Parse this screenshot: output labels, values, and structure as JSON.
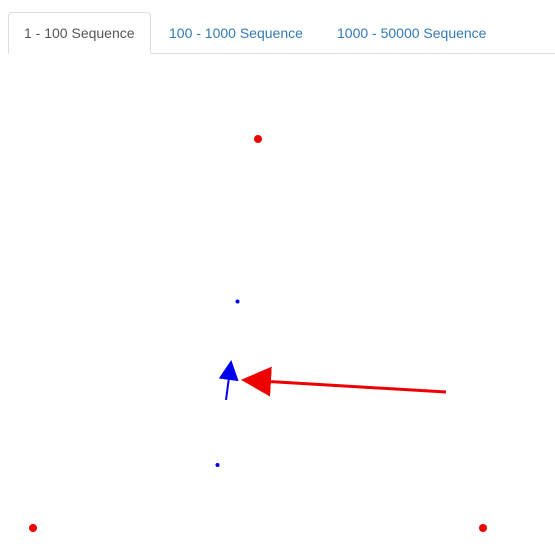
{
  "tabs": [
    {
      "label": "1 - 100 Sequence",
      "active": true
    },
    {
      "label": "100 - 1000 Sequence",
      "active": false
    },
    {
      "label": "1000 - 50000 Sequence",
      "active": false
    }
  ],
  "colors": {
    "vertex": "#ee0000",
    "point": "#0000ee",
    "arrow_red": "#ee0000",
    "arrow_blue": "#0000ee",
    "active_tab_text": "#555555",
    "link_tab_text": "#337ab7"
  }
}
